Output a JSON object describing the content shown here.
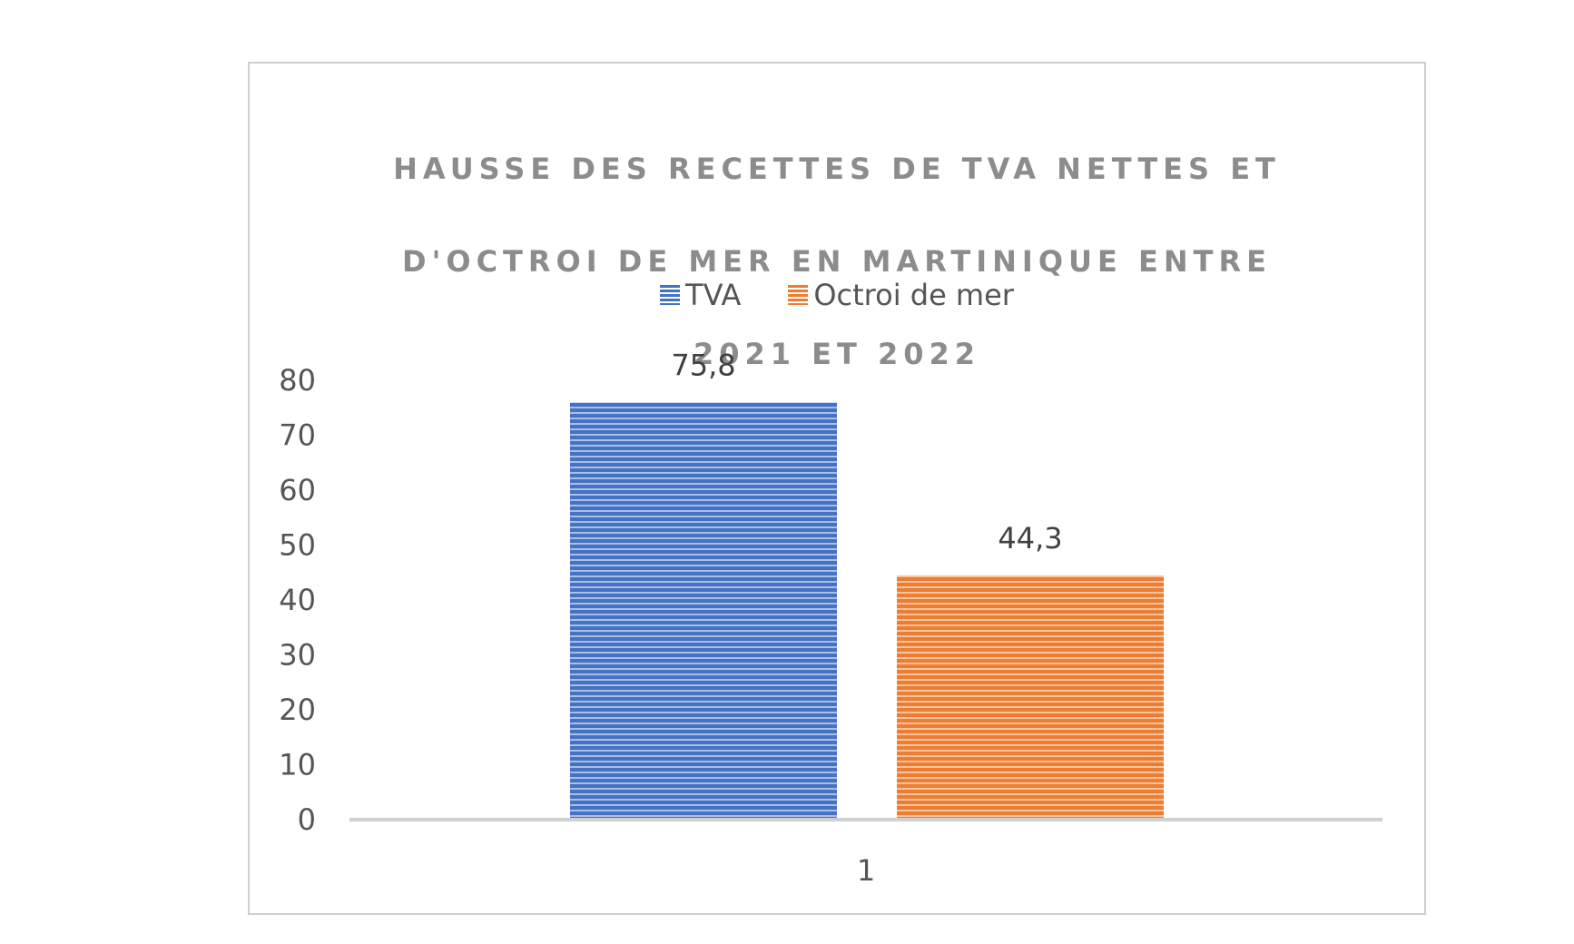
{
  "chart_data": {
    "type": "bar",
    "title": "HAUSSE DES RECETTES DE TVA NETTES ET D'OCTROI DE MER  EN MARTINIQUE  ENTRE 2021 ET 2022",
    "title_lines": [
      "HAUSSE DES RECETTES DE TVA NETTES ET",
      "D'OCTROI DE MER  EN MARTINIQUE  ENTRE",
      "2021 ET 2022"
    ],
    "categories": [
      "1"
    ],
    "series": [
      {
        "name": "TVA",
        "values": [
          75.8
        ],
        "label": "75,8",
        "color": "#4472c4"
      },
      {
        "name": "Octroi de mer",
        "values": [
          44.3
        ],
        "label": "44,3",
        "color": "#ed7d31"
      }
    ],
    "ylim": [
      0,
      80
    ],
    "yticks": [
      "0",
      "10",
      "20",
      "30",
      "40",
      "50",
      "60",
      "70",
      "80"
    ],
    "grid": false,
    "legend": "top-center",
    "bar_pattern": "horizontal-stripes"
  }
}
